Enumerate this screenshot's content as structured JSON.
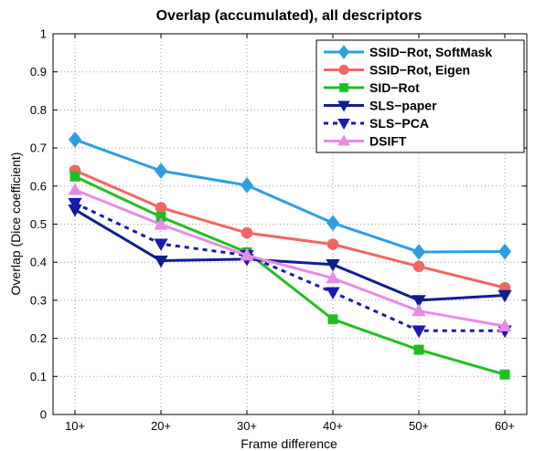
{
  "chart_data": {
    "type": "line",
    "title": "Overlap (accumulated), all descriptors",
    "xlabel": "Frame difference",
    "ylabel": "Overlap (Dice coefficient)",
    "categories": [
      "10+",
      "20+",
      "30+",
      "40+",
      "50+",
      "60+"
    ],
    "ylim": [
      0,
      1
    ],
    "yticks": [
      0,
      0.1,
      0.2,
      0.3,
      0.4,
      0.5,
      0.6,
      0.7,
      0.8,
      0.9,
      1
    ],
    "ytick_labels": [
      "0",
      "0.1",
      "0.2",
      "0.3",
      "0.4",
      "0.5",
      "0.6",
      "0.7",
      "0.8",
      "0.9",
      "1"
    ],
    "grid": true,
    "legend_position": "top-right",
    "series": [
      {
        "name": "SSID−Rot, SoftMask",
        "color": "#2e9ee0",
        "marker": "diamond",
        "dashed": false,
        "values": [
          0.722,
          0.64,
          0.602,
          0.503,
          0.427,
          0.428
        ]
      },
      {
        "name": "SSID−Rot, Eigen",
        "color": "#f26563",
        "marker": "circle",
        "dashed": false,
        "values": [
          0.641,
          0.543,
          0.477,
          0.447,
          0.389,
          0.333
        ]
      },
      {
        "name": "SID−Rot",
        "color": "#1fbf1f",
        "marker": "square",
        "dashed": false,
        "values": [
          0.625,
          0.519,
          0.426,
          0.25,
          0.17,
          0.105
        ]
      },
      {
        "name": "SLS−paper",
        "color": "#0f1f8f",
        "marker": "triangle-down",
        "dashed": false,
        "values": [
          0.538,
          0.404,
          0.408,
          0.394,
          0.3,
          0.313
        ]
      },
      {
        "name": "SLS−PCA",
        "color": "#1a1ab0",
        "marker": "triangle-down",
        "dashed": true,
        "values": [
          0.555,
          0.448,
          0.418,
          0.321,
          0.22,
          0.22
        ]
      },
      {
        "name": "DSIFT",
        "color": "#e68ce6",
        "marker": "triangle-up",
        "dashed": false,
        "values": [
          0.59,
          0.499,
          0.418,
          0.358,
          0.272,
          0.232
        ]
      }
    ]
  }
}
